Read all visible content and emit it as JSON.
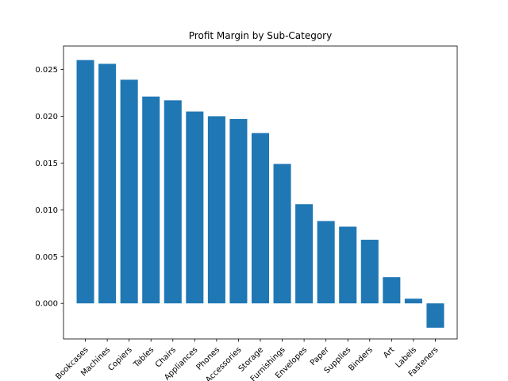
{
  "chart_data": {
    "type": "bar",
    "title": "Profit Margin by Sub-Category",
    "xlabel": "",
    "ylabel": "",
    "categories": [
      "Bookcases",
      "Machines",
      "Copiers",
      "Tables",
      "Chairs",
      "Appliances",
      "Phones",
      "Accessories",
      "Storage",
      "Furnishings",
      "Envelopes",
      "Paper",
      "Supplies",
      "Binders",
      "Art",
      "Labels",
      "Fasteners"
    ],
    "values": [
      0.026,
      0.0256,
      0.0239,
      0.0221,
      0.0217,
      0.0205,
      0.02,
      0.0197,
      0.0182,
      0.0149,
      0.0106,
      0.0088,
      0.0082,
      0.0068,
      0.0028,
      0.0005,
      -0.0026
    ],
    "ylim": [
      -0.0038,
      0.0275
    ],
    "yticks": [
      "0.000",
      "0.005",
      "0.010",
      "0.015",
      "0.020",
      "0.025"
    ],
    "ytick_values": [
      0.0,
      0.005,
      0.01,
      0.015,
      0.02,
      0.025
    ],
    "grid": false,
    "colors": {
      "bar": "#1f77b4",
      "axis": "#000000"
    }
  }
}
